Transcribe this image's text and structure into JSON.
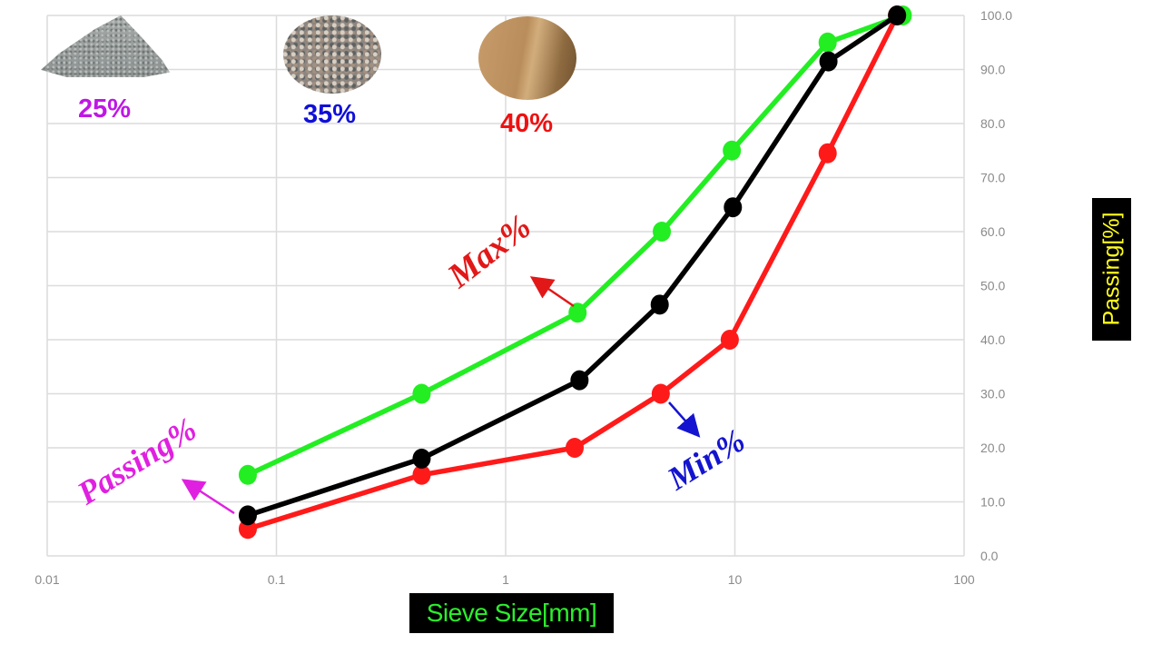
{
  "materials": [
    {
      "name": "crushed-stone",
      "percent": "25%",
      "color": "#c016e6"
    },
    {
      "name": "gravel",
      "percent": "35%",
      "color": "#1010d8"
    },
    {
      "name": "sand",
      "percent": "40%",
      "color": "#ee1111"
    }
  ],
  "axes": {
    "x_label": "Sieve Size[mm]",
    "y_label": "Passing[%]",
    "x_ticks": [
      "0.01",
      "0.1",
      "1",
      "10",
      "100"
    ],
    "y_ticks": [
      "0.0",
      "10.0",
      "20.0",
      "30.0",
      "40.0",
      "50.0",
      "60.0",
      "70.0",
      "80.0",
      "90.0",
      "100.0"
    ]
  },
  "annotations": {
    "max": "Max%",
    "min": "Min%",
    "passing": "Passing%"
  },
  "chart_data": {
    "type": "line",
    "title": "",
    "xlabel": "Sieve Size[mm]",
    "ylabel": "Passing[%]",
    "xscale": "log",
    "xlim": [
      0.01,
      100
    ],
    "ylim": [
      0,
      100
    ],
    "grid": true,
    "legend": "none (inline annotations)",
    "series": [
      {
        "name": "Max%",
        "color": "#22ee22",
        "x": [
          0.075,
          0.43,
          2.06,
          4.8,
          9.7,
          25.4,
          54
        ],
        "y": [
          15,
          30,
          45,
          60,
          75,
          95,
          100
        ]
      },
      {
        "name": "Passing%",
        "color": "#000000",
        "x": [
          0.075,
          0.43,
          2.1,
          4.7,
          9.8,
          25.6,
          51
        ],
        "y": [
          7.5,
          18,
          32.5,
          46.5,
          64.5,
          91.5,
          100
        ]
      },
      {
        "name": "Min%",
        "color": "#ff1a1a",
        "x": [
          0.075,
          0.43,
          2.0,
          4.75,
          9.5,
          25.4,
          51
        ],
        "y": [
          5,
          15,
          20,
          30,
          40,
          74.5,
          100
        ]
      }
    ],
    "annotations": [
      {
        "text": "25%",
        "note": "crushed stone"
      },
      {
        "text": "35%",
        "note": "gravel"
      },
      {
        "text": "40%",
        "note": "sand"
      },
      {
        "text": "Max%",
        "points_to": "upper (green) curve"
      },
      {
        "text": "Min%",
        "points_to": "lower (red) curve"
      },
      {
        "text": "Passing%",
        "points_to": "middle (black) curve"
      }
    ]
  }
}
